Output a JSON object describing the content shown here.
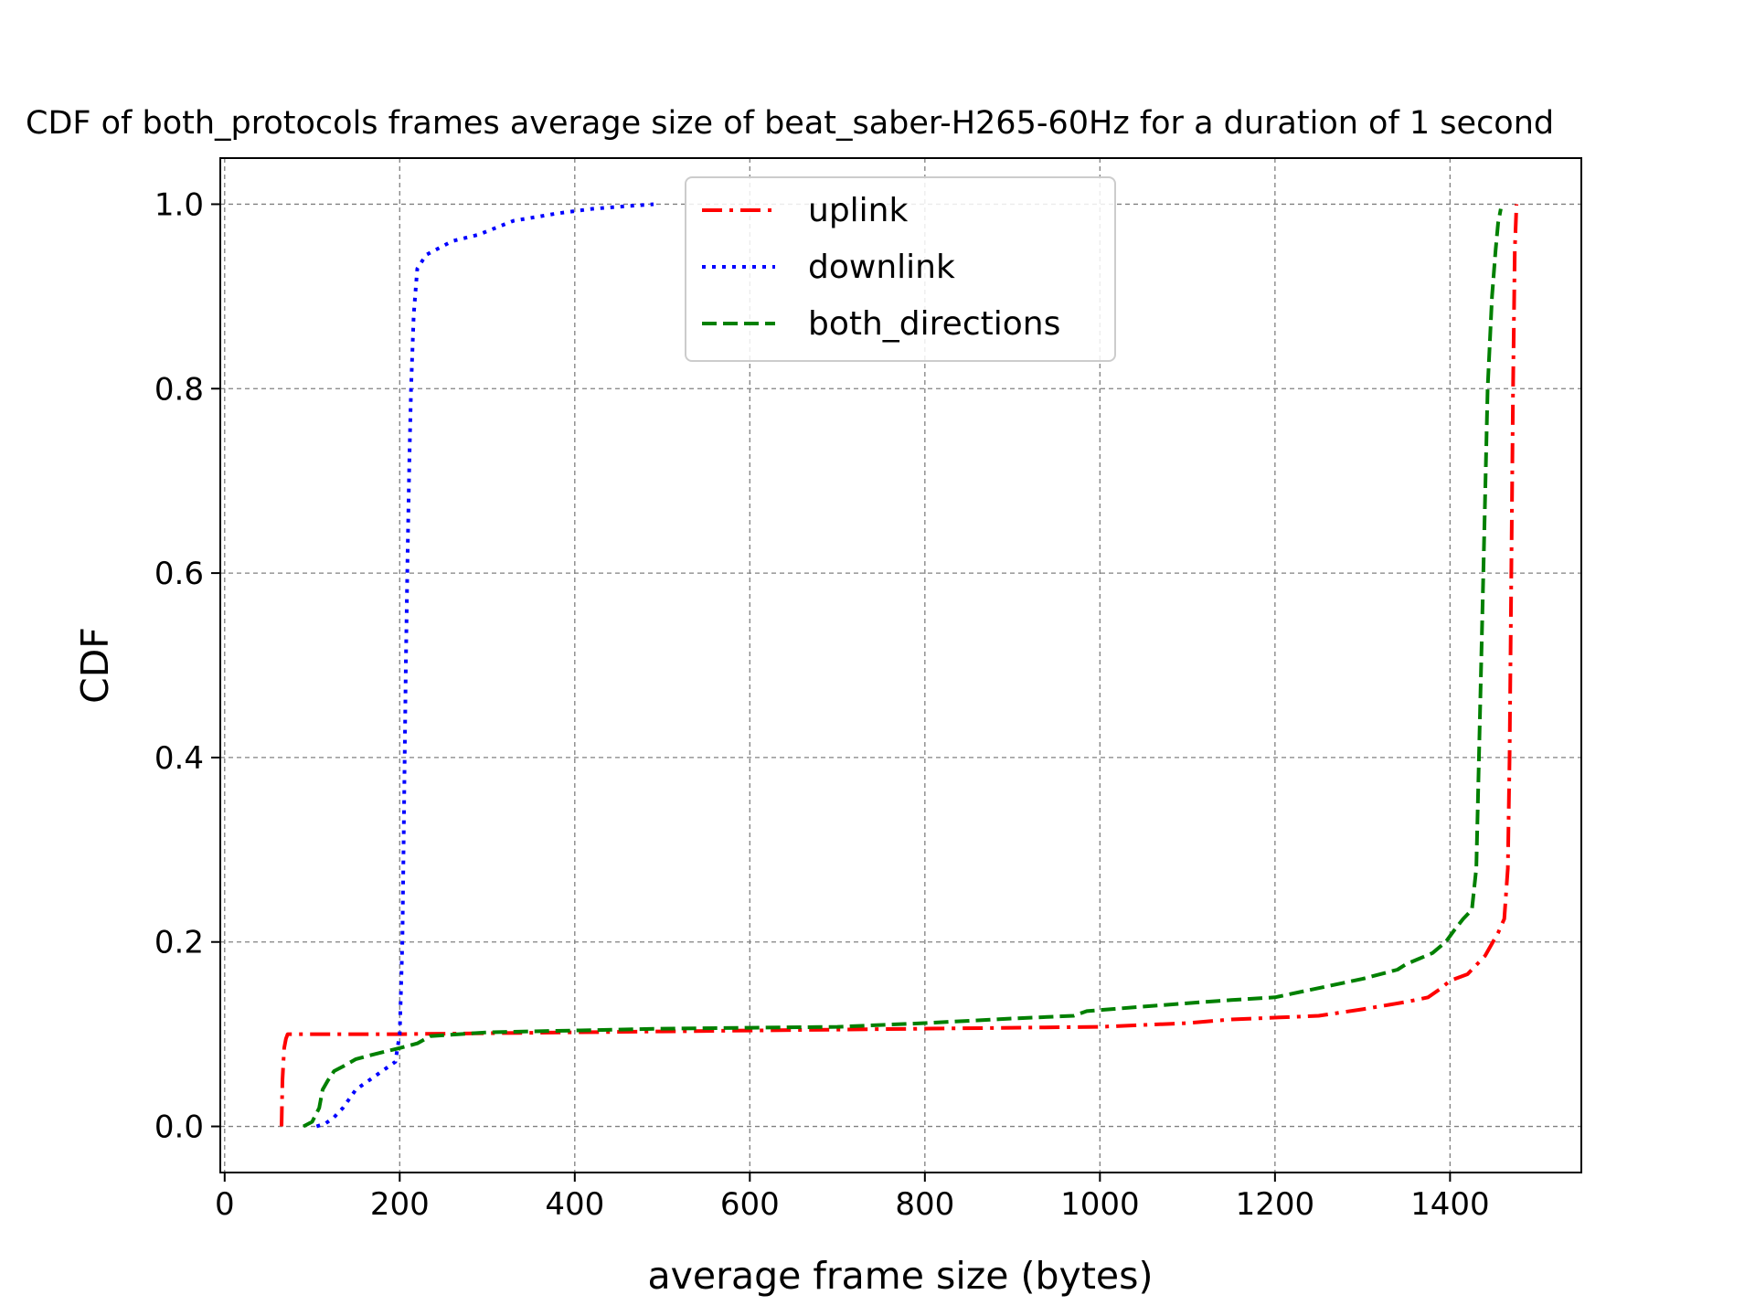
{
  "chart_data": {
    "type": "line",
    "title": "CDF of both_protocols frames average size of beat_saber-H265-60Hz for a duration of 1 second",
    "xlabel": "average frame size (bytes)",
    "ylabel": "CDF",
    "xlim": [
      -5,
      1550
    ],
    "ylim": [
      -0.05,
      1.05
    ],
    "xticks": [
      0,
      200,
      400,
      600,
      800,
      1000,
      1200,
      1400
    ],
    "yticks": [
      0.0,
      0.2,
      0.4,
      0.6,
      0.8,
      1.0
    ],
    "xtick_labels": [
      "0",
      "200",
      "400",
      "600",
      "800",
      "1000",
      "1200",
      "1400"
    ],
    "ytick_labels": [
      "0.0",
      "0.2",
      "0.4",
      "0.6",
      "0.8",
      "1.0"
    ],
    "grid": true,
    "legend_position": "top-center",
    "series": [
      {
        "name": "uplink",
        "color": "#ff0000",
        "style": "dashdot",
        "x": [
          65,
          66,
          68,
          70,
          72,
          100,
          200,
          300,
          400,
          500,
          600,
          700,
          800,
          900,
          1000,
          1050,
          1100,
          1150,
          1200,
          1250,
          1300,
          1350,
          1375,
          1390,
          1400,
          1420,
          1440,
          1455,
          1462,
          1466,
          1468,
          1470,
          1472,
          1474,
          1476
        ],
        "y": [
          0.0,
          0.05,
          0.085,
          0.095,
          0.1,
          0.1,
          0.1,
          0.101,
          0.102,
          0.103,
          0.104,
          0.105,
          0.106,
          0.107,
          0.108,
          0.11,
          0.112,
          0.116,
          0.118,
          0.12,
          0.127,
          0.135,
          0.14,
          0.15,
          0.158,
          0.165,
          0.185,
          0.21,
          0.225,
          0.28,
          0.4,
          0.6,
          0.8,
          0.95,
          1.0
        ]
      },
      {
        "name": "downlink",
        "color": "#0000ff",
        "style": "dotted",
        "x": [
          105,
          115,
          125,
          135,
          150,
          165,
          180,
          195,
          200,
          203,
          205,
          207,
          209,
          211,
          213,
          216,
          220,
          230,
          260,
          290,
          330,
          380,
          420,
          460,
          490
        ],
        "y": [
          0.0,
          0.003,
          0.01,
          0.02,
          0.04,
          0.05,
          0.06,
          0.07,
          0.1,
          0.2,
          0.35,
          0.5,
          0.62,
          0.72,
          0.8,
          0.88,
          0.93,
          0.945,
          0.96,
          0.967,
          0.982,
          0.99,
          0.995,
          0.998,
          1.0
        ]
      },
      {
        "name": "both_directions",
        "color": "#008000",
        "style": "dashed",
        "x": [
          90,
          100,
          108,
          112,
          118,
          125,
          135,
          150,
          170,
          200,
          220,
          235,
          300,
          400,
          500,
          600,
          700,
          800,
          900,
          970,
          985,
          1050,
          1120,
          1150,
          1200,
          1220,
          1250,
          1300,
          1340,
          1350,
          1365,
          1380,
          1395,
          1405,
          1415,
          1425,
          1430,
          1433,
          1438,
          1443,
          1448,
          1452,
          1455,
          1458
        ],
        "y": [
          0.0,
          0.005,
          0.02,
          0.04,
          0.05,
          0.06,
          0.065,
          0.073,
          0.078,
          0.085,
          0.09,
          0.098,
          0.102,
          0.104,
          0.106,
          0.107,
          0.108,
          0.112,
          0.117,
          0.12,
          0.125,
          0.13,
          0.135,
          0.137,
          0.14,
          0.144,
          0.15,
          0.16,
          0.17,
          0.176,
          0.182,
          0.188,
          0.2,
          0.213,
          0.225,
          0.235,
          0.28,
          0.4,
          0.6,
          0.8,
          0.9,
          0.95,
          0.98,
          0.995
        ]
      }
    ]
  }
}
